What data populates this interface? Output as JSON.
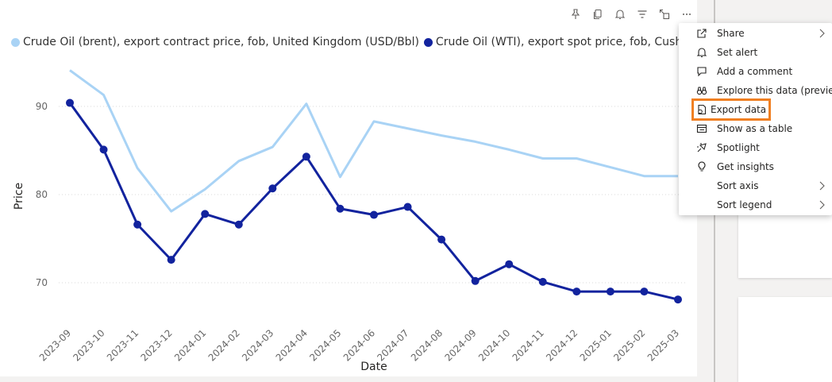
{
  "header_icons": [
    "pin-icon",
    "copy-icon",
    "bell-icon",
    "filter-icon",
    "focus-mode-icon",
    "more-options-icon"
  ],
  "legend": {
    "items": [
      {
        "label": "Crude Oil (brent), export contract price, fob, United Kingdom (USD/Bbl)",
        "color": "#a9d3f5"
      },
      {
        "label": "Crude Oil (WTI), export spot price, fob, Cushing (US",
        "color": "#12239e"
      }
    ]
  },
  "chart_data": {
    "type": "line",
    "xlabel": "Date",
    "ylabel": "Price",
    "categories": [
      "2023-09",
      "2023-10",
      "2023-11",
      "2023-12",
      "2024-01",
      "2024-02",
      "2024-03",
      "2024-04",
      "2024-05",
      "2024-06",
      "2024-07",
      "2024-08",
      "2024-09",
      "2024-10",
      "2024-11",
      "2024-12",
      "2025-01",
      "2025-02",
      "2025-03"
    ],
    "yticks": [
      70,
      80,
      90
    ],
    "ylim": [
      66,
      96
    ],
    "grid": true,
    "series": [
      {
        "name": "Crude Oil (brent), export contract price, fob, United Kingdom (USD/Bbl)",
        "color": "#a9d3f5",
        "markers": false,
        "values": [
          94.1,
          91.3,
          83.0,
          78.1,
          80.6,
          83.8,
          85.4,
          90.3,
          82.0,
          88.3,
          87.5,
          86.7,
          86.0,
          85.1,
          84.1,
          84.1,
          83.1,
          82.1,
          82.1
        ]
      },
      {
        "name": "Crude Oil (WTI), export spot price, fob, Cushing (US",
        "color": "#12239e",
        "markers": true,
        "values": [
          90.4,
          85.1,
          76.6,
          72.6,
          77.8,
          76.6,
          80.7,
          84.3,
          78.4,
          77.7,
          78.6,
          74.9,
          70.2,
          72.1,
          70.1,
          69.0,
          69.0,
          69.0,
          68.1
        ]
      }
    ]
  },
  "context_menu": {
    "items": [
      {
        "label": "Share",
        "icon": "share-icon",
        "submenu": true
      },
      {
        "label": "Set alert",
        "icon": "bell-icon",
        "submenu": false
      },
      {
        "label": "Add a comment",
        "icon": "comment-icon",
        "submenu": false
      },
      {
        "label": "Explore this data (preview)",
        "icon": "binoculars-icon",
        "submenu": false
      },
      {
        "label": "Export data",
        "icon": "export-icon",
        "submenu": false
      },
      {
        "label": "Show as a table",
        "icon": "table-icon",
        "submenu": false
      },
      {
        "label": "Spotlight",
        "icon": "spotlight-icon",
        "submenu": false
      },
      {
        "label": "Get insights",
        "icon": "lightbulb-icon",
        "submenu": false
      },
      {
        "label": "Sort axis",
        "icon": "",
        "submenu": true
      },
      {
        "label": "Sort legend",
        "icon": "",
        "submenu": true
      }
    ],
    "highlighted": "Export data",
    "highlight_color": "#f07f22"
  }
}
